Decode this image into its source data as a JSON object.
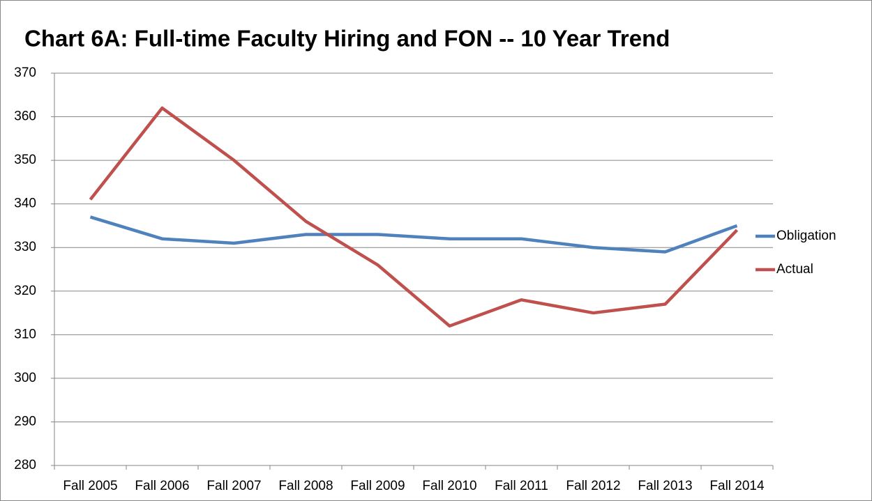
{
  "chart_data": {
    "type": "line",
    "title": "Chart 6A:  Full-time Faculty Hiring and FON -- 10 Year Trend",
    "categories": [
      "Fall 2005",
      "Fall 2006",
      "Fall 2007",
      "Fall 2008",
      "Fall 2009",
      "Fall 2010",
      "Fall 2011",
      "Fall 2012",
      "Fall 2013",
      "Fall 2014"
    ],
    "series": [
      {
        "name": "Obligation",
        "color": "#4f81bd",
        "values": [
          337,
          332,
          331,
          333,
          333,
          332,
          332,
          330,
          329,
          335
        ]
      },
      {
        "name": "Actual",
        "color": "#c0504d",
        "values": [
          341,
          362,
          350,
          336,
          326,
          312,
          318,
          315,
          317,
          334
        ]
      }
    ],
    "ylim": [
      280,
      370
    ],
    "yticks": [
      280,
      290,
      300,
      310,
      320,
      330,
      340,
      350,
      360,
      370
    ],
    "grid": true,
    "legend": "right"
  }
}
